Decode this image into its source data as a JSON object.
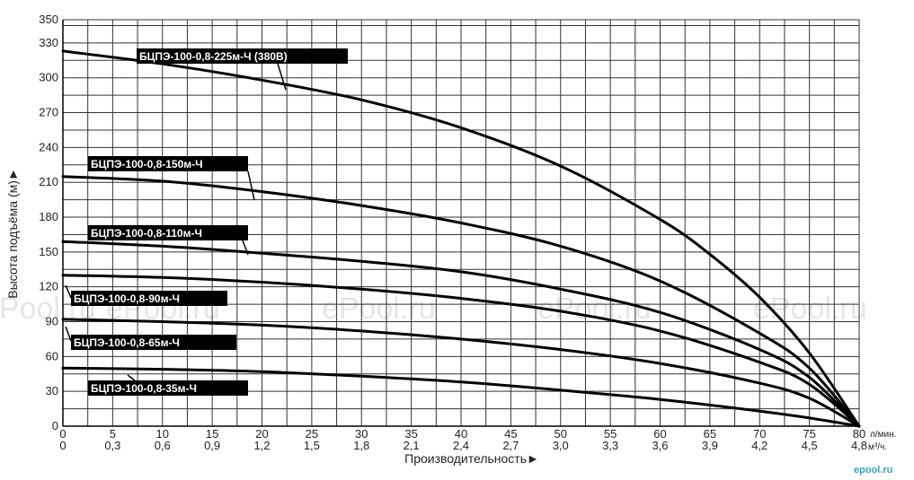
{
  "chart_data": {
    "type": "line",
    "xlabel": "Производительность►",
    "ylabel": "Высота подъёма (м)►",
    "x_unit_top": "л/мин.",
    "x_unit_bottom": "м³/ч.",
    "xlim": [
      0,
      80
    ],
    "ylim": [
      0,
      350
    ],
    "x_ticks": [
      0,
      5,
      10,
      15,
      20,
      25,
      30,
      35,
      40,
      45,
      50,
      55,
      60,
      65,
      70,
      75,
      80
    ],
    "x_ticks_secondary": [
      "0",
      "0,3",
      "0,6",
      "0,9",
      "1,2",
      "1,5",
      "1,8",
      "2,1",
      "2,4",
      "2,7",
      "3,0",
      "3,3",
      "3,6",
      "3,9",
      "4,2",
      "4,5",
      "4,8"
    ],
    "y_ticks": [
      0,
      30,
      60,
      90,
      120,
      150,
      180,
      210,
      240,
      270,
      300,
      330,
      350
    ],
    "grid": true,
    "series": [
      {
        "name": "БЦПЭ-100-0,8-225м-Ч (380В)",
        "points": [
          [
            0,
            323
          ],
          [
            10,
            312
          ],
          [
            20,
            298
          ],
          [
            30,
            281
          ],
          [
            40,
            257
          ],
          [
            50,
            224
          ],
          [
            60,
            178
          ],
          [
            65,
            148
          ],
          [
            70,
            111
          ],
          [
            75,
            63
          ],
          [
            80,
            0
          ]
        ]
      },
      {
        "name": "БЦПЭ-100-0,8-150м-Ч",
        "points": [
          [
            0,
            215
          ],
          [
            10,
            211
          ],
          [
            20,
            202
          ],
          [
            30,
            190
          ],
          [
            40,
            175
          ],
          [
            50,
            155
          ],
          [
            60,
            125
          ],
          [
            70,
            80
          ],
          [
            75,
            50
          ],
          [
            80,
            0
          ]
        ]
      },
      {
        "name": "БЦПЭ-100-0,8-110м-Ч",
        "points": [
          [
            0,
            159
          ],
          [
            10,
            155
          ],
          [
            20,
            149
          ],
          [
            30,
            142
          ],
          [
            40,
            133
          ],
          [
            50,
            118
          ],
          [
            60,
            98
          ],
          [
            70,
            66
          ],
          [
            75,
            42
          ],
          [
            80,
            0
          ]
        ]
      },
      {
        "name": "БЦПЭ-100-0,8-90м-Ч",
        "points": [
          [
            0,
            130
          ],
          [
            10,
            128
          ],
          [
            20,
            124
          ],
          [
            30,
            118
          ],
          [
            40,
            110
          ],
          [
            50,
            99
          ],
          [
            60,
            82
          ],
          [
            70,
            55
          ],
          [
            75,
            36
          ],
          [
            80,
            0
          ]
        ]
      },
      {
        "name": "БЦПЭ-100-0,8-65м-Ч",
        "points": [
          [
            0,
            92
          ],
          [
            10,
            90
          ],
          [
            20,
            87
          ],
          [
            30,
            82
          ],
          [
            40,
            75
          ],
          [
            50,
            66
          ],
          [
            60,
            54
          ],
          [
            70,
            37
          ],
          [
            75,
            24
          ],
          [
            80,
            0
          ]
        ]
      },
      {
        "name": "БЦПЭ-100-0,8-35м-Ч",
        "points": [
          [
            0,
            50
          ],
          [
            10,
            49
          ],
          [
            20,
            47
          ],
          [
            30,
            43
          ],
          [
            40,
            38
          ],
          [
            50,
            31
          ],
          [
            60,
            23
          ],
          [
            70,
            13
          ],
          [
            75,
            7
          ],
          [
            80,
            0
          ]
        ]
      }
    ],
    "colors": {
      "line": "#000000",
      "grid": "#333333",
      "label_bg": "#000000",
      "label_text": "#ffffff"
    }
  },
  "watermark": {
    "text": "ePool.ru",
    "brand": "epool.ru"
  }
}
